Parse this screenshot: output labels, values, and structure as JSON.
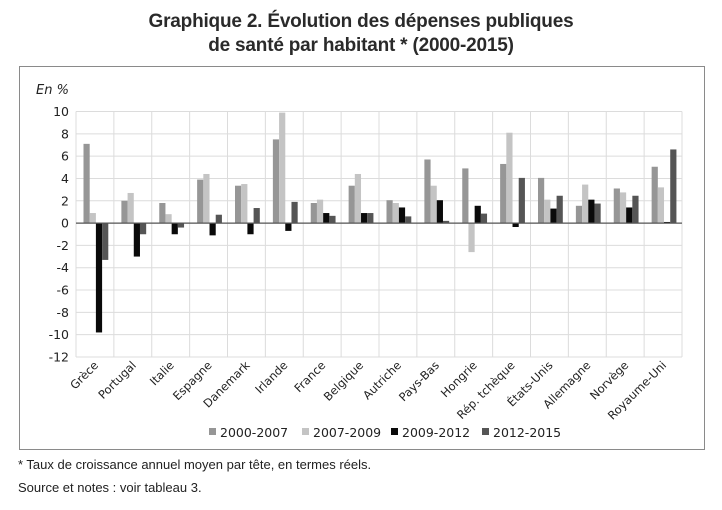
{
  "title_lines": [
    "Graphique 2. Évolution des dépenses publiques",
    "de santé par habitant * (2000-2015)"
  ],
  "footnotes": [
    "* Taux de croissance annuel moyen par tête, en termes réels.",
    "Source et notes : voir tableau 3."
  ],
  "chart_data": {
    "type": "bar",
    "title": "Graphique 2. Évolution des dépenses publiques de santé par habitant * (2000-2015)",
    "ylabel": "En %",
    "xlabel": "",
    "ylim": [
      -12,
      10
    ],
    "yticks": [
      10,
      8,
      6,
      4,
      2,
      0,
      -2,
      -4,
      -6,
      -8,
      -10,
      -12
    ],
    "grid": true,
    "legend_position": "bottom",
    "categories": [
      "Grèce",
      "Portugal",
      "Italie",
      "Espagne",
      "Danemark",
      "Irlande",
      "France",
      "Belgique",
      "Autriche",
      "Pays-Bas",
      "Hongrie",
      "Rép. tchèque",
      "États-Unis",
      "Allemagne",
      "Norvège",
      "Royaume-Uni"
    ],
    "series": [
      {
        "name": "2000-2007",
        "color": "#969696",
        "values": [
          7.1,
          2.0,
          1.8,
          3.9,
          3.35,
          7.5,
          1.8,
          3.35,
          2.05,
          5.7,
          4.9,
          5.3,
          4.05,
          1.55,
          3.1,
          5.05
        ]
      },
      {
        "name": "2007-2009",
        "color": "#c4c4c4",
        "values": [
          0.9,
          2.7,
          0.8,
          4.4,
          3.5,
          9.9,
          2.1,
          4.4,
          1.8,
          3.35,
          -2.6,
          8.1,
          2.1,
          3.45,
          2.75,
          3.2
        ]
      },
      {
        "name": "2009-2012",
        "color": "#0a0a0a",
        "values": [
          -9.8,
          -3.0,
          -1.0,
          -1.1,
          -1.0,
          -0.7,
          0.9,
          0.9,
          1.4,
          2.05,
          1.55,
          -0.35,
          1.3,
          2.1,
          1.4,
          0.1
        ]
      },
      {
        "name": "2012-2015",
        "color": "#555555",
        "values": [
          -3.3,
          -1.0,
          -0.4,
          0.75,
          1.35,
          1.9,
          0.65,
          0.9,
          0.6,
          0.2,
          0.85,
          4.05,
          2.45,
          1.75,
          2.45,
          6.6
        ]
      }
    ]
  }
}
